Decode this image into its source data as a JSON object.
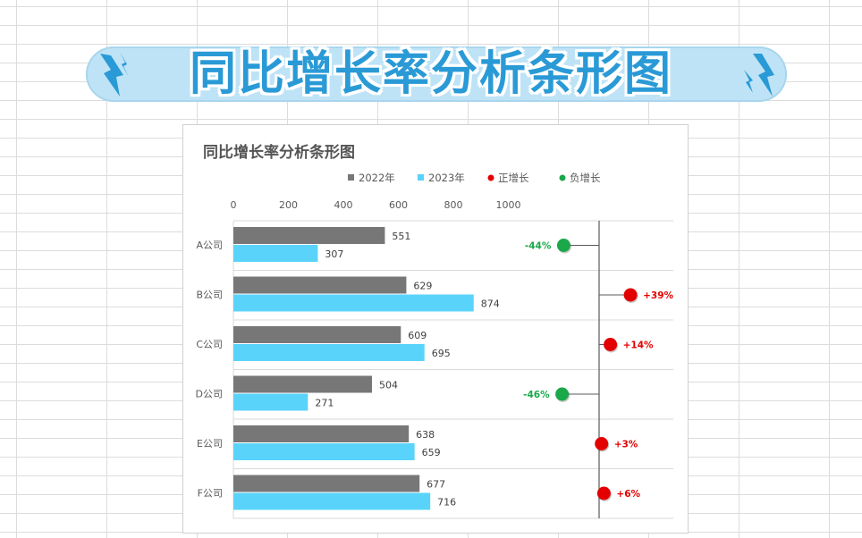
{
  "banner": {
    "title": "同比增长率分析条形图"
  },
  "colors": {
    "bar2022": "#777777",
    "bar2023": "#5ad3fb",
    "positive": "#e30000",
    "negative": "#1aa84a",
    "banner_bg": "#bfe3f6",
    "banner_text": "#2a9ad6"
  },
  "icons": {
    "left_decoration": "lightning-bolt-icon",
    "right_decoration": "lightning-bolt-icon"
  },
  "chart_data": {
    "type": "bar",
    "orientation": "horizontal",
    "title": "同比增长率分析条形图",
    "xlim": [
      0,
      1000
    ],
    "xticks": [
      "0",
      "200",
      "400",
      "600",
      "800",
      "1000"
    ],
    "categories": [
      "A公司",
      "B公司",
      "C公司",
      "D公司",
      "E公司",
      "F公司"
    ],
    "series": [
      {
        "name": "2022年",
        "values": [
          551,
          629,
          609,
          504,
          638,
          677
        ]
      },
      {
        "name": "2023年",
        "values": [
          307,
          874,
          695,
          271,
          659,
          716
        ]
      }
    ],
    "growth": {
      "values": [
        -44,
        39,
        14,
        -46,
        3,
        6
      ],
      "labels": [
        "-44%",
        "+39%",
        "+14%",
        "-46%",
        "+3%",
        "+6%"
      ],
      "positive_name": "正增长",
      "negative_name": "负增长"
    },
    "legend": [
      "2022年",
      "2023年",
      "正增长",
      "负增长"
    ],
    "legend_position": "top",
    "grid": "horizontal separators"
  }
}
